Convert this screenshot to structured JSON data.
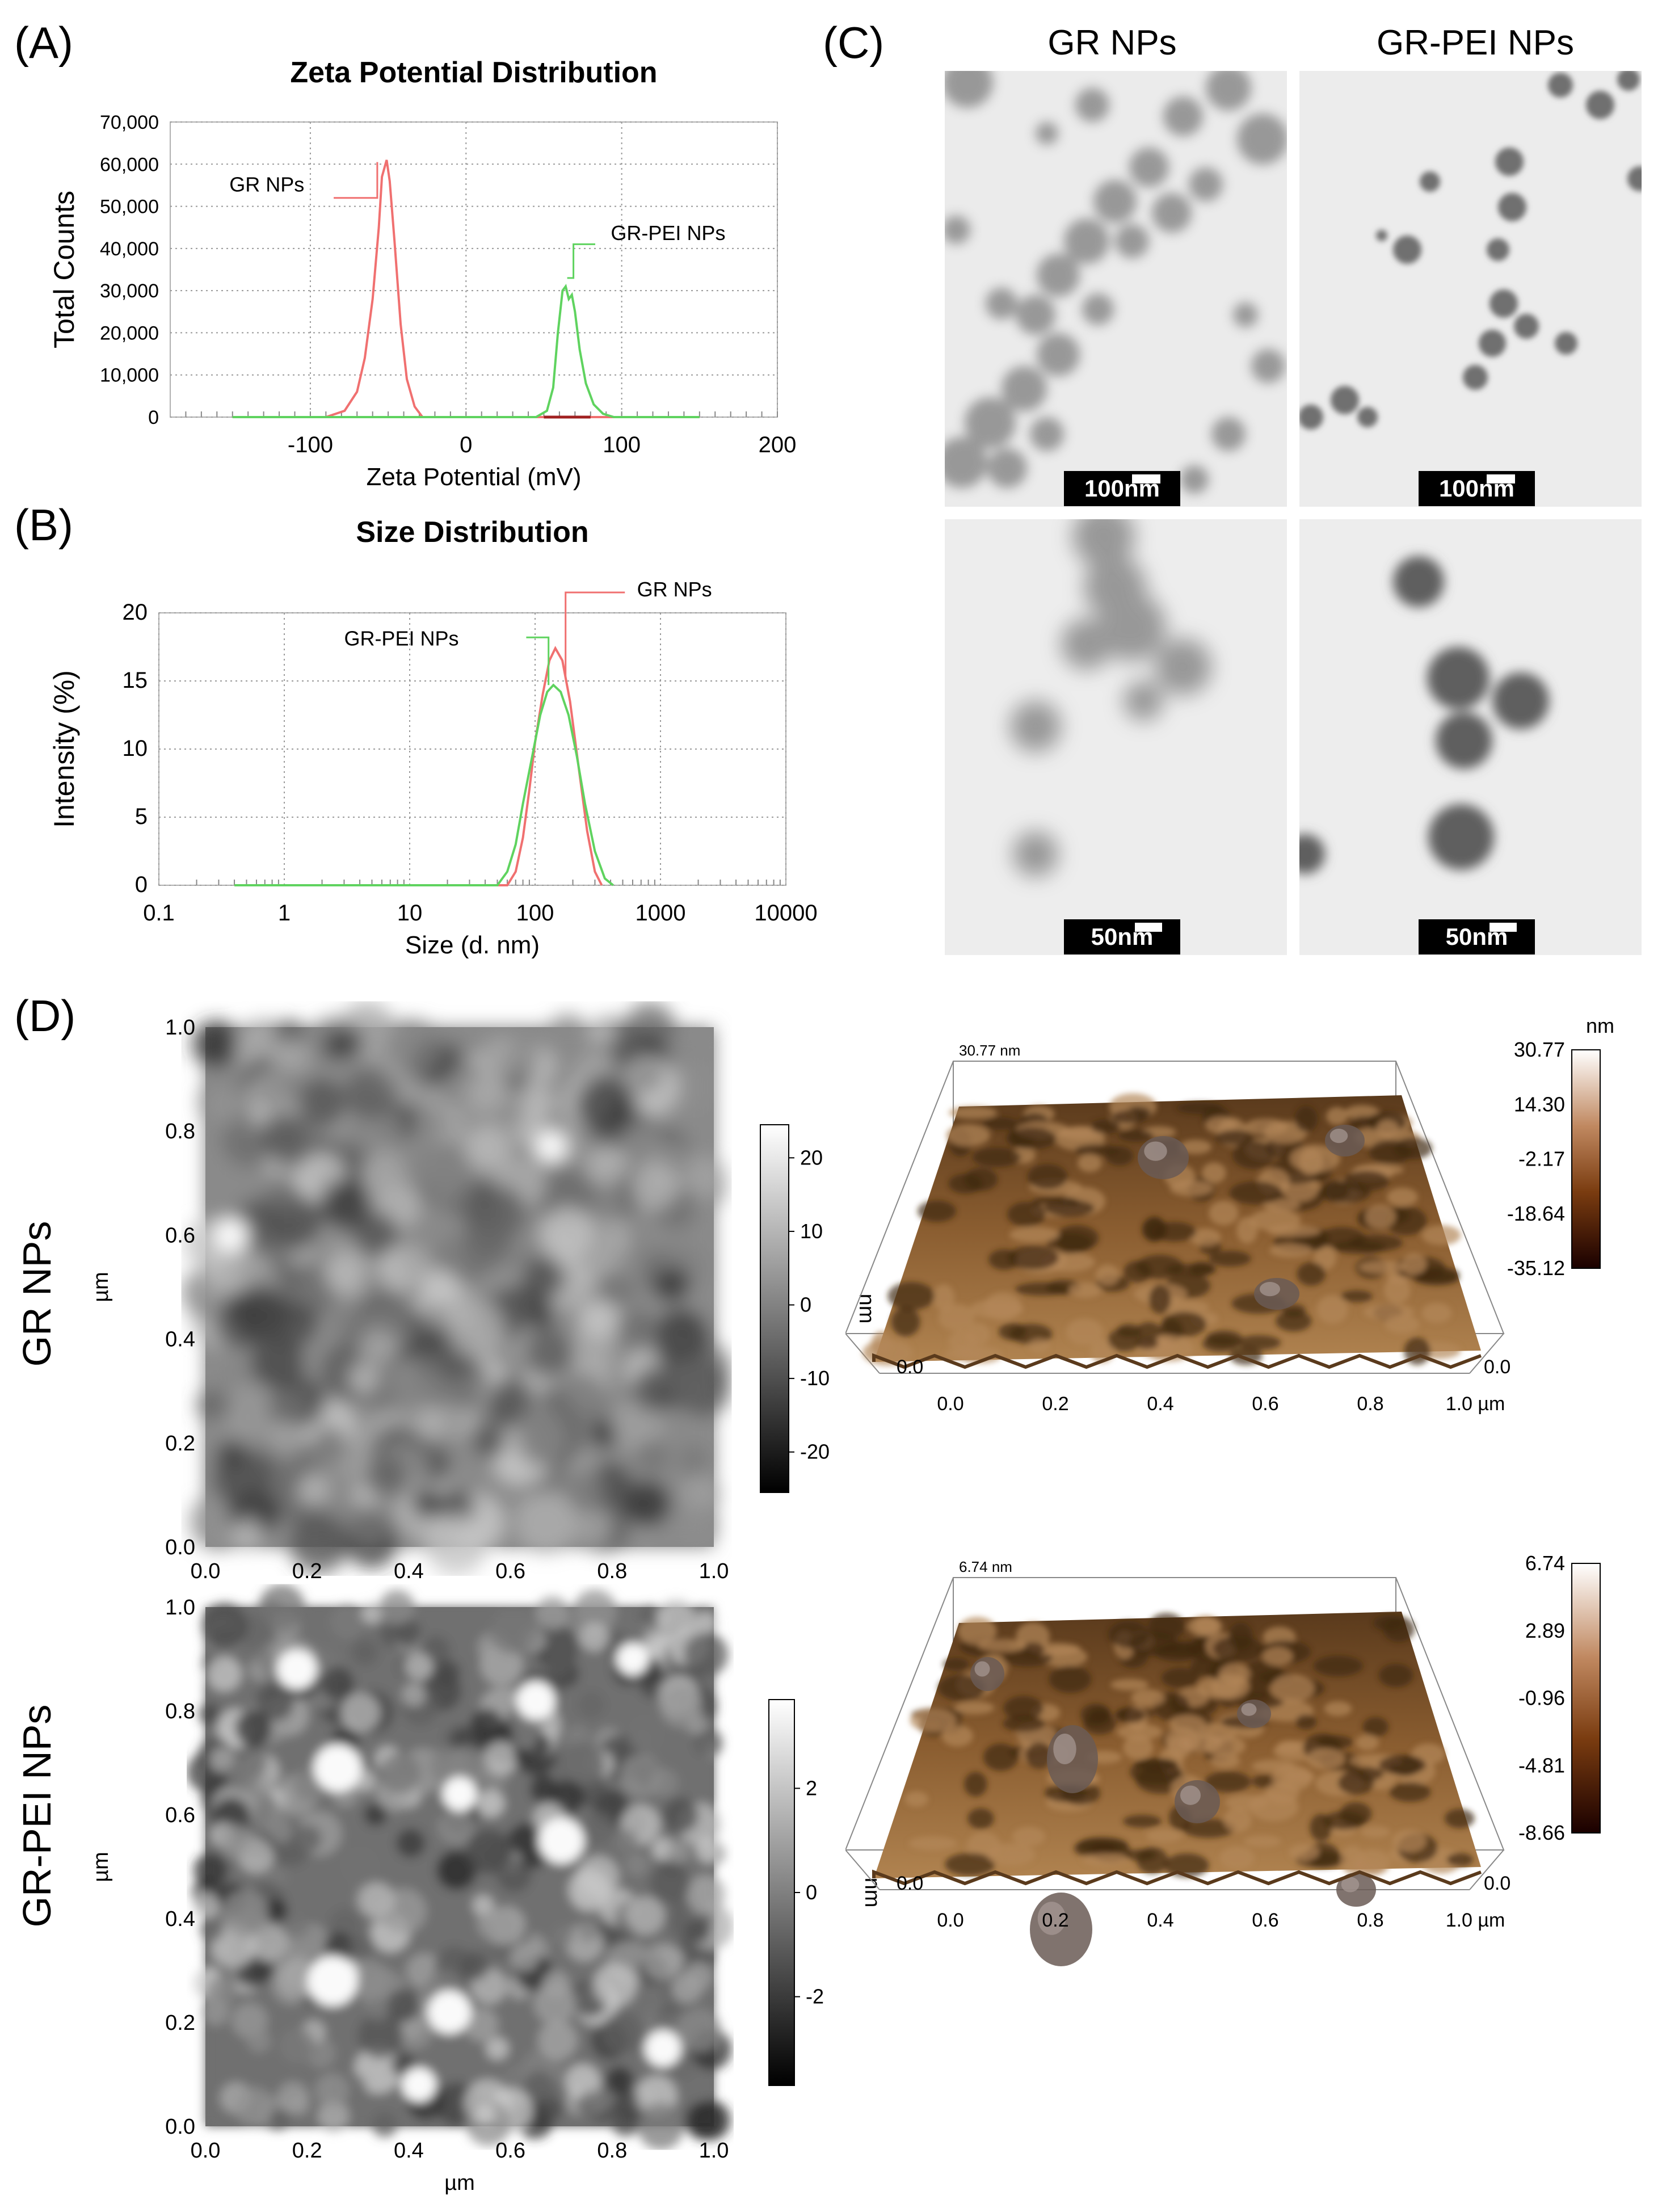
{
  "panels": {
    "a": "(A)",
    "b": "(B)",
    "c": "(C)",
    "d": "(D)"
  },
  "chart_data": [
    {
      "type": "line",
      "id": "zeta",
      "title": "Zeta Potential Distribution",
      "xlabel": "Zeta Potential (mV)",
      "ylabel": "Total Counts",
      "xlim": [
        -190,
        200
      ],
      "ylim": [
        0,
        70000
      ],
      "xticks": [
        -100,
        0,
        100,
        200
      ],
      "xtick_labels": [
        "-100",
        "0",
        "100",
        "200"
      ],
      "yticks": [
        0,
        10000,
        20000,
        30000,
        40000,
        50000,
        60000,
        70000
      ],
      "ytick_labels": [
        "0",
        "10,000",
        "20,000",
        "30,000",
        "40,000",
        "50,000",
        "60,000",
        "70,000"
      ],
      "grid": true,
      "series": [
        {
          "name": "GR NPs",
          "color": "#f07070",
          "x": [
            -150,
            -90,
            -78,
            -70,
            -65,
            -60,
            -56,
            -54,
            -51,
            -49,
            -46,
            -42,
            -38,
            -33,
            -28,
            -20,
            50,
            150
          ],
          "y": [
            0,
            0,
            1500,
            6000,
            14000,
            28000,
            45000,
            57000,
            61000,
            56000,
            42000,
            22000,
            9000,
            2500,
            0,
            0,
            0,
            0
          ]
        },
        {
          "name": "GR-PEI NPs",
          "color": "#5fd35f",
          "x": [
            -150,
            45,
            52,
            56,
            59,
            62,
            64,
            66,
            68,
            70,
            73,
            77,
            82,
            88,
            95,
            150
          ],
          "y": [
            0,
            0,
            1500,
            7000,
            20000,
            30000,
            31000,
            28000,
            29000,
            25000,
            16000,
            8000,
            3000,
            800,
            0,
            0
          ]
        }
      ],
      "annotations": [
        "GR NPs",
        "GR-PEI NPs"
      ]
    },
    {
      "type": "line",
      "id": "size",
      "title": "Size Distribution",
      "xlabel": "Size (d. nm)",
      "ylabel": "Intensity (%)",
      "xscale": "log",
      "xlim": [
        0.1,
        10000
      ],
      "ylim": [
        0,
        20
      ],
      "xticks": [
        0.1,
        1,
        10,
        100,
        1000,
        10000
      ],
      "xtick_labels": [
        "0.1",
        "1",
        "10",
        "100",
        "1000",
        "10000"
      ],
      "yticks": [
        0,
        5,
        10,
        15,
        20
      ],
      "ytick_labels": [
        "0",
        "5",
        "10",
        "15",
        "20"
      ],
      "grid": true,
      "series": [
        {
          "name": "GR NPs",
          "color": "#f07070",
          "x": [
            0.4,
            60,
            70,
            80,
            90,
            100,
            115,
            130,
            145,
            165,
            190,
            220,
            260,
            300,
            340
          ],
          "y": [
            0,
            0,
            1,
            3.5,
            7,
            10.5,
            14,
            16.5,
            17.4,
            16.5,
            13.5,
            9,
            4,
            1,
            0
          ]
        },
        {
          "name": "GR-PEI NPs",
          "color": "#5fd35f",
          "x": [
            0.4,
            50,
            60,
            70,
            80,
            95,
            110,
            125,
            140,
            160,
            185,
            215,
            250,
            300,
            360,
            420
          ],
          "y": [
            0,
            0,
            1,
            3,
            6,
            9.5,
            12.5,
            14.2,
            14.7,
            14.2,
            12.5,
            9.5,
            6,
            2.5,
            0.5,
            0
          ]
        }
      ],
      "annotations": [
        "GR NPs",
        "GR-PEI NPs"
      ]
    }
  ],
  "tem": {
    "col_headers": [
      "GR NPs",
      "GR-PEI NPs"
    ],
    "scalebars": [
      "100nm",
      "100nm",
      "50nm",
      "50nm"
    ]
  },
  "afm": {
    "row_labels": [
      "GR NPs",
      "GR-PEI NPs"
    ],
    "axis_ticks": [
      "0.0",
      "0.2",
      "0.4",
      "0.6",
      "0.8",
      "1.0"
    ],
    "y_unit": "µm",
    "x_unit": "µm",
    "colorbar_unit": "nm",
    "gr_colorbar": [
      "20",
      "10",
      "0",
      "-10",
      "-20"
    ],
    "pei_colorbar": [
      "2",
      "0",
      "-2"
    ],
    "gr3d_scale_unit": "nm",
    "gr3d_scale": [
      "30.77",
      "14.30",
      "-2.17",
      "-18.64",
      "-35.12"
    ],
    "pei3d_scale": [
      "6.74",
      "2.89",
      "-0.96",
      "-4.81",
      "-8.66"
    ],
    "gr3d_top_label": "30.77 nm",
    "pei3d_top_label": "6.74 nm",
    "axis3d_ticks": [
      "0.0",
      "0.2",
      "0.4",
      "0.6",
      "0.8",
      "1.0 µm"
    ],
    "corner_zero": "0.0"
  },
  "colors": {
    "gr": "#f07070",
    "pei": "#5fd35f",
    "afm_dark": "#3a2410",
    "afm_light": "#b88850"
  }
}
